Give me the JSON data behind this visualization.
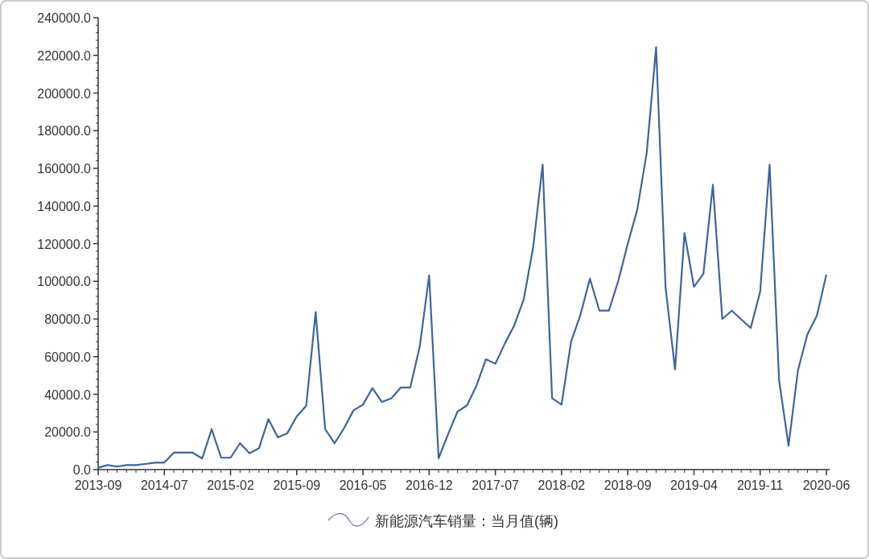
{
  "chart_data": {
    "type": "line",
    "categories": [
      "2013-09",
      null,
      null,
      null,
      null,
      null,
      null,
      "2014-07",
      null,
      null,
      null,
      null,
      null,
      null,
      "2015-02",
      null,
      null,
      null,
      null,
      null,
      null,
      "2015-09",
      null,
      null,
      null,
      null,
      null,
      null,
      "2016-05",
      null,
      null,
      null,
      null,
      null,
      null,
      "2016-12",
      null,
      null,
      null,
      null,
      null,
      null,
      "2017-07",
      null,
      null,
      null,
      null,
      null,
      null,
      "2018-02",
      null,
      null,
      null,
      null,
      null,
      null,
      "2018-09",
      null,
      null,
      null,
      null,
      null,
      null,
      "2019-04",
      null,
      null,
      null,
      null,
      null,
      null,
      "2019-11",
      null,
      null,
      null,
      null,
      null,
      null,
      "2020-06"
    ],
    "series": [
      {
        "name": "新能源汽车销量：当月值(辆)",
        "color": "#3f6598",
        "values": [
          1000,
          2400,
          1600,
          2400,
          2400,
          3000,
          3700,
          3700,
          9000,
          9000,
          9000,
          5900,
          21500,
          6300,
          6300,
          14000,
          8700,
          11300,
          26800,
          17100,
          19300,
          28200,
          33900,
          83700,
          21500,
          14000,
          22000,
          31500,
          34500,
          43300,
          35900,
          37900,
          43600,
          43600,
          65200,
          103200,
          6000,
          18800,
          30800,
          34100,
          44500,
          58600,
          56200,
          66900,
          76600,
          90400,
          118200,
          162000,
          37900,
          34500,
          67800,
          82300,
          101400,
          84400,
          84400,
          100200,
          120000,
          137900,
          168100,
          224300,
          96600,
          53200,
          125600,
          97100,
          104000,
          151300,
          80000,
          84400,
          79800,
          75200,
          94500,
          162000,
          47500,
          12700,
          52800,
          71900,
          81800,
          103500
        ]
      }
    ],
    "ylim": [
      0,
      240000
    ],
    "yticks": [
      {
        "value": 0,
        "label": "0.0"
      },
      {
        "value": 20000,
        "label": "20000.0"
      },
      {
        "value": 40000,
        "label": "40000.0"
      },
      {
        "value": 60000,
        "label": "60000.0"
      },
      {
        "value": 80000,
        "label": "80000.0"
      },
      {
        "value": 100000,
        "label": "100000.0"
      },
      {
        "value": 120000,
        "label": "120000.0"
      },
      {
        "value": 140000,
        "label": "140000.0"
      },
      {
        "value": 160000,
        "label": "160000.0"
      },
      {
        "value": 180000,
        "label": "180000.0"
      },
      {
        "value": 200000,
        "label": "200000.0"
      },
      {
        "value": 220000,
        "label": "220000.0"
      },
      {
        "value": 240000,
        "label": "240000.0"
      }
    ],
    "grid": false,
    "legend": "bottom",
    "marker": "none",
    "line_style": "solid"
  }
}
